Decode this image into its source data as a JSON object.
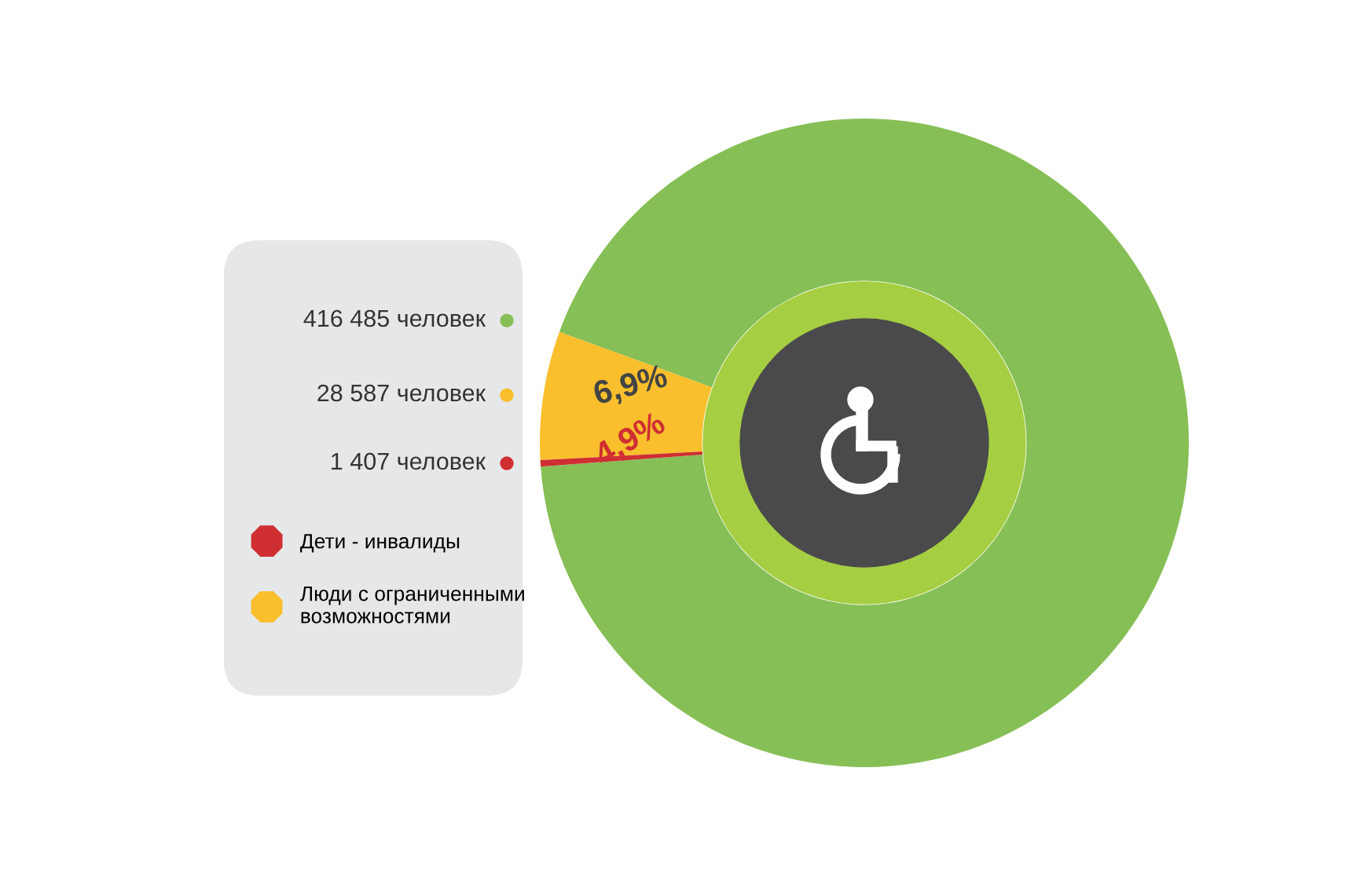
{
  "chart_data": {
    "type": "donut",
    "categories": [
      null,
      "Люди с ограниченными возможностями",
      "Дети - инвалиды"
    ],
    "values": [
      416485,
      28587,
      1407
    ],
    "colors": [
      "#86bf56",
      "#f9bf2c",
      "#cf2f33"
    ],
    "value_labels": [
      "416 485 человек",
      "28 587 человек",
      "1 407 человек"
    ],
    "annotations": [
      "6,9%",
      "4,9%"
    ],
    "legend": "left"
  }
}
